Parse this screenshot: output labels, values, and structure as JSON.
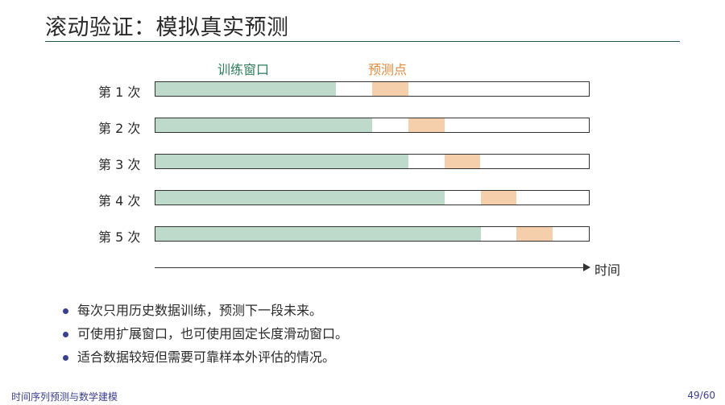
{
  "slide": {
    "title": "滚动验证：模拟真实预测"
  },
  "diagram": {
    "legend": {
      "train_label": "训练窗口",
      "pred_label": "预测点",
      "train_color": "#bedacb",
      "pred_color": "#f5cfab"
    },
    "rows": [
      {
        "label": "第 1 次",
        "train_fraction": 0.417,
        "pred_start_fraction": 0.5,
        "pred_end_fraction": 0.583
      },
      {
        "label": "第 2 次",
        "train_fraction": 0.5,
        "pred_start_fraction": 0.583,
        "pred_end_fraction": 0.667
      },
      {
        "label": "第 3 次",
        "train_fraction": 0.583,
        "pred_start_fraction": 0.667,
        "pred_end_fraction": 0.75
      },
      {
        "label": "第 4 次",
        "train_fraction": 0.667,
        "pred_start_fraction": 0.75,
        "pred_end_fraction": 0.833
      },
      {
        "label": "第 5 次",
        "train_fraction": 0.75,
        "pred_start_fraction": 0.833,
        "pred_end_fraction": 0.917
      }
    ],
    "axis_label": "时间"
  },
  "bullets": [
    "每次只用历史数据训练，预测下一段未来。",
    "可使用扩展窗口，也可使用固定长度滑动窗口。",
    "适合数据较短但需要可靠样本外评估的情况。"
  ],
  "footer": {
    "course": "时间序列预测与数学建模",
    "page": "49/60"
  }
}
